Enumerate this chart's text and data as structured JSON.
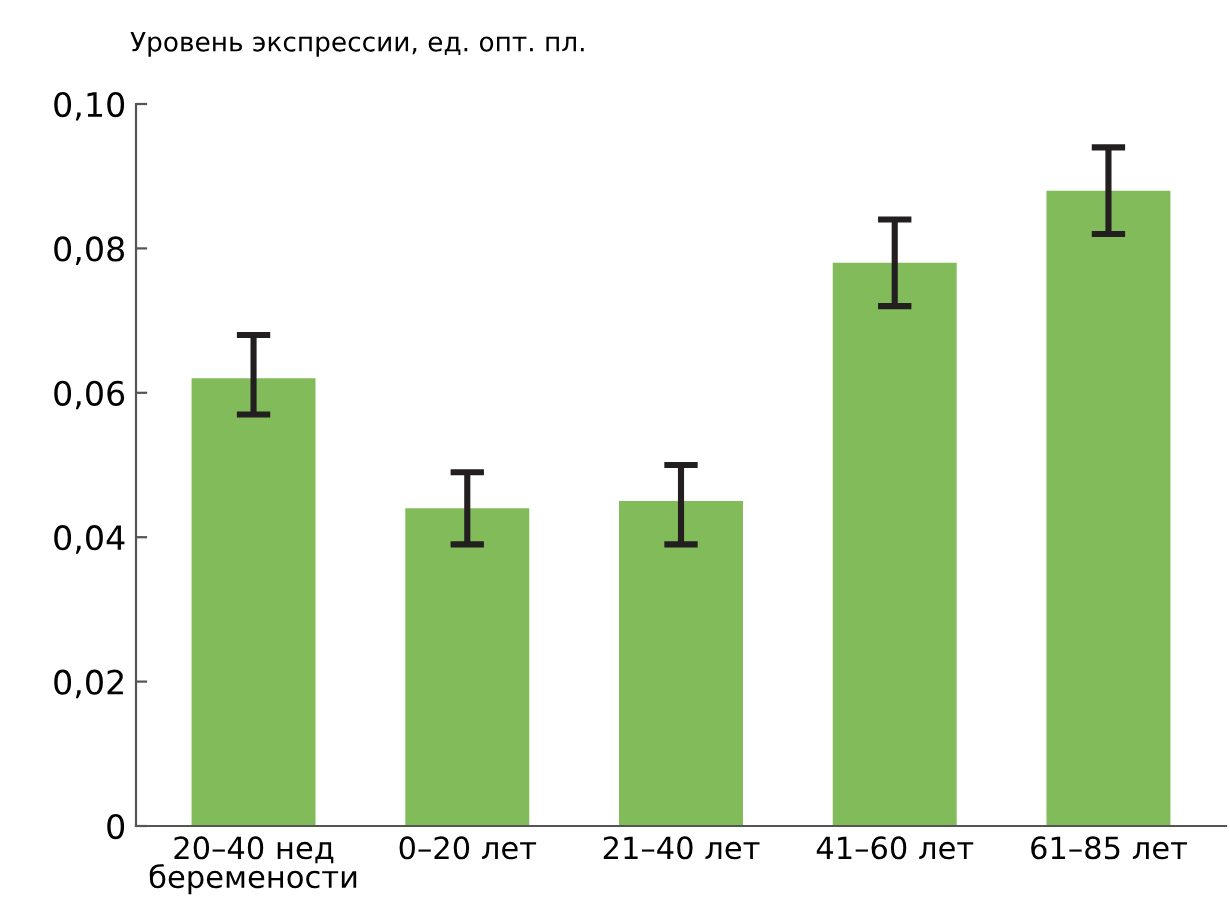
{
  "chart_data": {
    "type": "bar",
    "ylabel": "Уровень экспрессии, ед. опт. пл.",
    "categories": [
      "20–40 нед\nберемености",
      "0–20 лет",
      "21–40 лет",
      "41–60 лет",
      "61–85 лет"
    ],
    "values": [
      0.062,
      0.044,
      0.045,
      0.078,
      0.088
    ],
    "errors": [
      [
        0.057,
        0.068
      ],
      [
        0.039,
        0.049
      ],
      [
        0.039,
        0.05
      ],
      [
        0.072,
        0.084
      ],
      [
        0.082,
        0.094
      ]
    ],
    "color": "#82bb5a",
    "ylim": [
      0,
      0.1
    ],
    "yticks": [
      0,
      {
        "value": 0.02,
        "label": "0,02"
      },
      {
        "value": 0.04,
        "label": "0,04"
      },
      {
        "value": 0.06,
        "label": "0,06"
      },
      {
        "value": 0.08,
        "label": "0,08"
      },
      {
        "value": 0.1,
        "label": "0,10"
      }
    ],
    "grid": false,
    "legend": false
  }
}
